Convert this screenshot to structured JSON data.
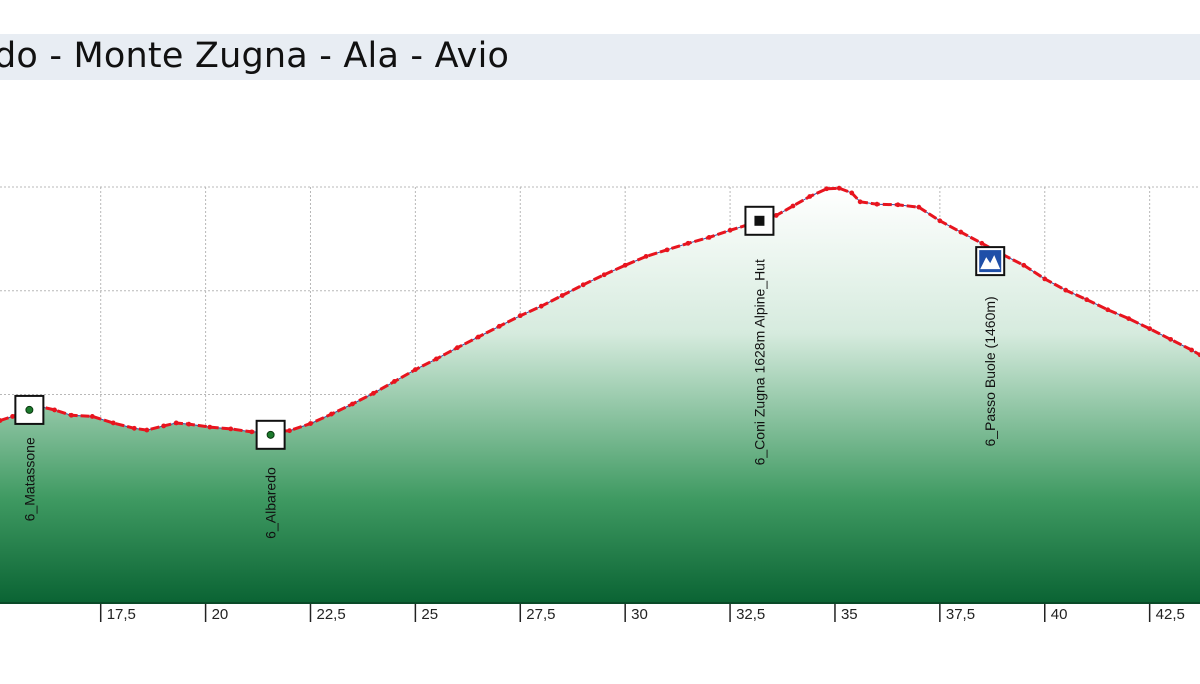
{
  "header": {
    "title": "do - Monte Zugna - Ala - Avio"
  },
  "chart_data": {
    "type": "area",
    "title": "do - Monte Zugna - Ala - Avio",
    "xlabel": "",
    "ylabel": "",
    "xlim": [
      15.1,
      43.7
    ],
    "ylim": [
      1000,
      1700
    ],
    "grid": true,
    "x_ticks": [
      17.5,
      20,
      22.5,
      25,
      27.5,
      30,
      32.5,
      35,
      37.5,
      40,
      42.5
    ],
    "x_tick_labels": [
      "17,5",
      "20",
      "22,5",
      "25",
      "27,5",
      "30",
      "32,5",
      "35",
      "37,5",
      "40",
      "42,5"
    ],
    "y_gridlines": [
      1000,
      1175,
      1350,
      1525,
      1700
    ],
    "colors": {
      "line": "#e8141e",
      "fill_top": "#e2efe6",
      "fill_bottom": "#0f6b3a",
      "grid": "#b8b8b8",
      "title_bg": "#e8edf3"
    },
    "series": [
      {
        "values": [
          [
            15.1,
            1306
          ],
          [
            15.4,
            1313
          ],
          [
            15.8,
            1324
          ],
          [
            16.1,
            1329
          ],
          [
            16.4,
            1324
          ],
          [
            16.8,
            1315
          ],
          [
            17.3,
            1313
          ],
          [
            17.8,
            1302
          ],
          [
            18.3,
            1293
          ],
          [
            18.6,
            1290
          ],
          [
            19.0,
            1297
          ],
          [
            19.3,
            1302
          ],
          [
            19.6,
            1300
          ],
          [
            20.1,
            1295
          ],
          [
            20.6,
            1292
          ],
          [
            21.1,
            1287
          ],
          [
            21.5,
            1287
          ],
          [
            22.0,
            1289
          ],
          [
            22.5,
            1301
          ],
          [
            23.0,
            1317
          ],
          [
            23.5,
            1334
          ],
          [
            24.0,
            1352
          ],
          [
            24.5,
            1372
          ],
          [
            25.0,
            1392
          ],
          [
            25.5,
            1410
          ],
          [
            26.0,
            1429
          ],
          [
            26.5,
            1447
          ],
          [
            27.0,
            1465
          ],
          [
            27.5,
            1483
          ],
          [
            28.0,
            1499
          ],
          [
            28.5,
            1517
          ],
          [
            29.0,
            1535
          ],
          [
            29.5,
            1552
          ],
          [
            30.0,
            1568
          ],
          [
            30.5,
            1583
          ],
          [
            31.0,
            1594
          ],
          [
            31.5,
            1605
          ],
          [
            32.0,
            1615
          ],
          [
            32.5,
            1627
          ],
          [
            33.0,
            1638
          ],
          [
            33.3,
            1644
          ],
          [
            33.6,
            1652
          ],
          [
            34.0,
            1668
          ],
          [
            34.4,
            1684
          ],
          [
            34.8,
            1697
          ],
          [
            35.1,
            1698
          ],
          [
            35.4,
            1690
          ],
          [
            35.6,
            1675
          ],
          [
            36.0,
            1671
          ],
          [
            36.5,
            1670
          ],
          [
            37.0,
            1666
          ],
          [
            37.5,
            1643
          ],
          [
            38.0,
            1624
          ],
          [
            38.5,
            1605
          ],
          [
            39.0,
            1586
          ],
          [
            39.5,
            1568
          ],
          [
            40.0,
            1545
          ],
          [
            40.5,
            1526
          ],
          [
            41.0,
            1510
          ],
          [
            41.5,
            1493
          ],
          [
            42.0,
            1478
          ],
          [
            42.5,
            1461
          ],
          [
            43.0,
            1443
          ],
          [
            43.5,
            1425
          ],
          [
            43.7,
            1417
          ]
        ]
      }
    ],
    "waypoints": [
      {
        "x": 15.8,
        "y": 1324,
        "label": "6_Matassone",
        "icon": "waypoint-dot-icon"
      },
      {
        "x": 21.55,
        "y": 1282,
        "label": "6_Albaredo",
        "icon": "waypoint-dot-icon"
      },
      {
        "x": 33.2,
        "y": 1643,
        "label": "6_Coni Zugna 1628m Alpine_Hut",
        "icon": "hut-icon"
      },
      {
        "x": 38.7,
        "y": 1575,
        "label": "6_Passo Buole (1460m)",
        "icon": "mountain-pass-icon"
      }
    ]
  }
}
